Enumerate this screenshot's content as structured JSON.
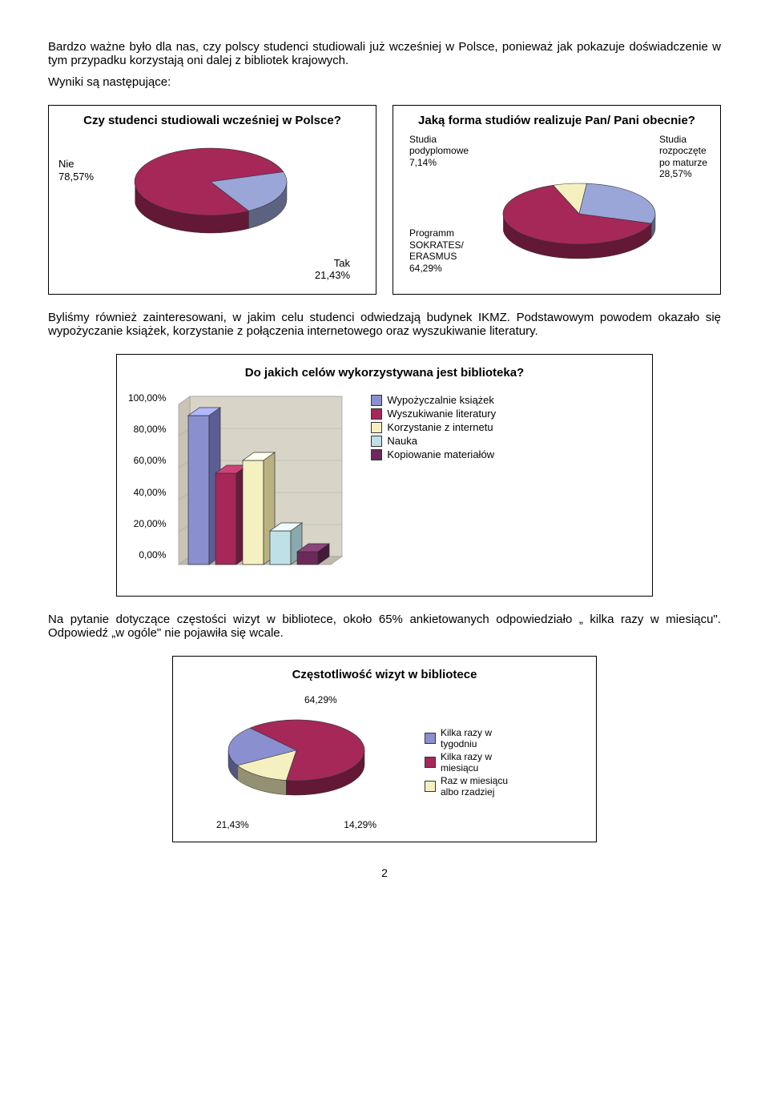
{
  "intro": {
    "p1": "Bardzo ważne było dla nas, czy polscy studenci studiowali już wcześniej w Polsce, ponieważ jak pokazuje doświadczenie w tym przypadku korzystają oni dalej z bibliotek krajowych.",
    "p2": "Wyniki są następujące:"
  },
  "chart1": {
    "title": "Czy studenci studiowali wcześniej w Polsce?",
    "slices": [
      {
        "label": "Nie\n78,57%",
        "value": 78.57,
        "color": "#a52859"
      },
      {
        "label": "Tak\n21,43%",
        "value": 21.43,
        "color": "#9aa6d8"
      }
    ],
    "dark": {
      "a": "#6a1a3a",
      "b": "#6a749c"
    }
  },
  "chart2": {
    "title": "Jaką forma studiów realizuje Pan/ Pani obecnie?",
    "slices": [
      {
        "label": "Studia\npodyplomowe\n7,14%",
        "value": 7.14,
        "color": "#f5f0c0"
      },
      {
        "label": "Studia\nrozpoczęte\npo maturze\n28,57%",
        "value": 28.57,
        "color": "#9aa6d8"
      },
      {
        "label": "Programm\nSOKRATES/\nERASMUS\n64,29%",
        "value": 64.29,
        "color": "#a52859"
      }
    ],
    "startAngle": -110,
    "dark": {
      "a": "#6a1a3a",
      "b": "#6a749c",
      "c": "#b9b180"
    }
  },
  "mid": {
    "p1": "Byliśmy również zainteresowani, w jakim celu studenci odwiedzają budynek IKMZ. Podstawowym powodem okazało się wypożyczanie książek, korzystanie z połączenia internetowego oraz wyszukiwanie literatury."
  },
  "chart3": {
    "title": "Do jakich celów wykorzystywana jest biblioteka?",
    "yticks": [
      "100,00%",
      "80,00%",
      "60,00%",
      "40,00%",
      "20,00%",
      "0,00%"
    ],
    "ymax": 100,
    "bars": [
      {
        "value": 93,
        "color": "#8a8fd0",
        "dark": "#5a5e94",
        "label": "Wypożyczalnie książek"
      },
      {
        "value": 57,
        "color": "#a52859",
        "dark": "#6a1a3a",
        "label": "Wyszukiwanie literatury"
      },
      {
        "value": 65,
        "color": "#f5f0c0",
        "dark": "#b9b180",
        "label": "Korzystanie z internetu"
      },
      {
        "value": 21,
        "color": "#bfe0e6",
        "dark": "#8aa9ae",
        "label": "Nauka"
      },
      {
        "value": 8,
        "color": "#6a2a59",
        "dark": "#431a38",
        "label": "Kopiowanie materiałów"
      }
    ]
  },
  "after": {
    "p1": "Na pytanie dotyczące częstości wizyt w bibliotece, około 65% ankietowanych odpowiedziało „ kilka razy w miesiącu\". Odpowiedź „w ogóle\" nie pojawiła się wcale."
  },
  "chart4": {
    "title": "Częstotliwość wizyt w bibliotece",
    "slices": [
      {
        "label": "21,43%",
        "legend": "Kilka razy w tygodniu",
        "value": 21.43,
        "color": "#8a8fd0"
      },
      {
        "label": "64,29%",
        "legend": "Kilka razy w miesiącu",
        "value": 64.29,
        "color": "#a52859"
      },
      {
        "label": "14,29%",
        "legend": "Raz w miesiącu albo rzadziej",
        "value": 14.29,
        "color": "#f5f0c0"
      }
    ],
    "startAngle": 150,
    "dark": {
      "a": "#5a5e94",
      "b": "#6a1a3a",
      "c": "#b9b180"
    }
  },
  "pageNumber": "2"
}
